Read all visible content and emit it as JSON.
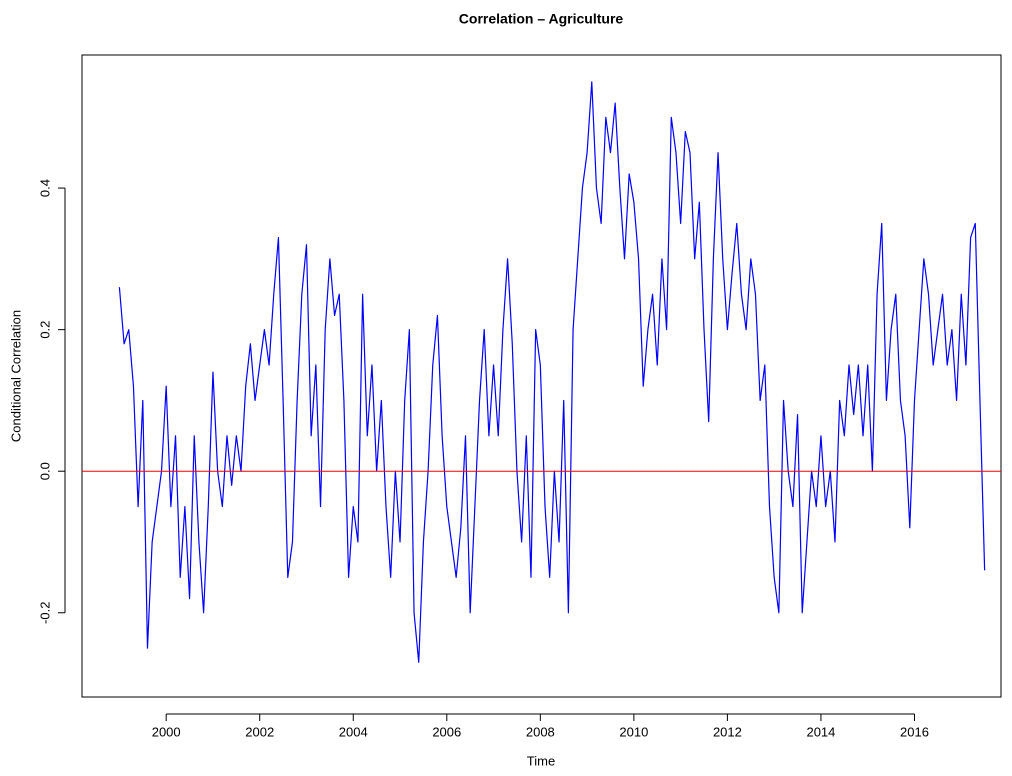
{
  "chart_data": {
    "type": "line",
    "title": "Correlation – Agriculture",
    "xlabel": "Time",
    "ylabel": "Conditional Correlation",
    "color": "#0000ff",
    "hline": {
      "value": 0,
      "color": "#ff0000"
    },
    "xlim": [
      1998.2,
      2017.85
    ],
    "ylim": [
      -0.319,
      0.588
    ],
    "xticks": [
      2000,
      2002,
      2004,
      2006,
      2008,
      2010,
      2012,
      2014,
      2016
    ],
    "yticks": [
      -0.2,
      {
        "value": 0,
        "label": "0.0"
      },
      0.2,
      0.4
    ],
    "x": [
      1999.0,
      1999.1,
      1999.2,
      1999.3,
      1999.4,
      1999.5,
      1999.6,
      1999.7,
      1999.8,
      1999.9,
      2000.0,
      2000.1,
      2000.2,
      2000.3,
      2000.4,
      2000.5,
      2000.6,
      2000.7,
      2000.8,
      2000.9,
      2001.0,
      2001.1,
      2001.2,
      2001.3,
      2001.4,
      2001.5,
      2001.6,
      2001.7,
      2001.8,
      2001.9,
      2002.0,
      2002.1,
      2002.2,
      2002.3,
      2002.4,
      2002.5,
      2002.6,
      2002.7,
      2002.8,
      2002.9,
      2003.0,
      2003.1,
      2003.2,
      2003.3,
      2003.4,
      2003.5,
      2003.6,
      2003.7,
      2003.8,
      2003.9,
      2004.0,
      2004.1,
      2004.2,
      2004.3,
      2004.4,
      2004.5,
      2004.6,
      2004.7,
      2004.8,
      2004.9,
      2005.0,
      2005.1,
      2005.2,
      2005.3,
      2005.4,
      2005.5,
      2005.6,
      2005.7,
      2005.8,
      2005.9,
      2006.0,
      2006.1,
      2006.2,
      2006.3,
      2006.4,
      2006.5,
      2006.6,
      2006.7,
      2006.8,
      2006.9,
      2007.0,
      2007.1,
      2007.2,
      2007.3,
      2007.4,
      2007.5,
      2007.6,
      2007.7,
      2007.8,
      2007.9,
      2008.0,
      2008.1,
      2008.2,
      2008.3,
      2008.4,
      2008.5,
      2008.6,
      2008.7,
      2008.8,
      2008.9,
      2009.0,
      2009.1,
      2009.2,
      2009.3,
      2009.4,
      2009.5,
      2009.6,
      2009.7,
      2009.8,
      2009.9,
      2010.0,
      2010.1,
      2010.2,
      2010.3,
      2010.4,
      2010.5,
      2010.6,
      2010.7,
      2010.8,
      2010.9,
      2011.0,
      2011.1,
      2011.2,
      2011.3,
      2011.4,
      2011.5,
      2011.6,
      2011.7,
      2011.8,
      2011.9,
      2012.0,
      2012.1,
      2012.2,
      2012.3,
      2012.4,
      2012.5,
      2012.6,
      2012.7,
      2012.8,
      2012.9,
      2013.0,
      2013.1,
      2013.2,
      2013.3,
      2013.4,
      2013.5,
      2013.6,
      2013.7,
      2013.8,
      2013.9,
      2014.0,
      2014.1,
      2014.2,
      2014.3,
      2014.4,
      2014.5,
      2014.6,
      2014.7,
      2014.8,
      2014.9,
      2015.0,
      2015.1,
      2015.2,
      2015.3,
      2015.4,
      2015.5,
      2015.6,
      2015.7,
      2015.8,
      2015.9,
      2016.0,
      2016.1,
      2016.2,
      2016.3,
      2016.4,
      2016.5,
      2016.6,
      2016.7,
      2016.8,
      2016.9,
      2017.0,
      2017.1,
      2017.2,
      2017.3,
      2017.4,
      2017.5
    ],
    "values": [
      0.26,
      0.18,
      0.2,
      0.12,
      -0.05,
      0.1,
      -0.25,
      -0.1,
      -0.05,
      0.0,
      0.12,
      -0.05,
      0.05,
      -0.15,
      -0.05,
      -0.18,
      0.05,
      -0.1,
      -0.2,
      -0.05,
      0.14,
      0.0,
      -0.05,
      0.05,
      -0.02,
      0.05,
      0.0,
      0.12,
      0.18,
      0.1,
      0.15,
      0.2,
      0.15,
      0.25,
      0.33,
      0.1,
      -0.15,
      -0.1,
      0.1,
      0.25,
      0.32,
      0.05,
      0.15,
      -0.05,
      0.2,
      0.3,
      0.22,
      0.25,
      0.1,
      -0.15,
      -0.05,
      -0.1,
      0.25,
      0.05,
      0.15,
      0.0,
      0.1,
      -0.05,
      -0.15,
      0.0,
      -0.1,
      0.1,
      0.2,
      -0.2,
      -0.27,
      -0.1,
      0.0,
      0.15,
      0.22,
      0.05,
      -0.05,
      -0.1,
      -0.15,
      -0.08,
      0.05,
      -0.2,
      -0.05,
      0.1,
      0.2,
      0.05,
      0.15,
      0.05,
      0.2,
      0.3,
      0.18,
      0.0,
      -0.1,
      0.05,
      -0.15,
      0.2,
      0.15,
      -0.05,
      -0.15,
      0.0,
      -0.1,
      0.1,
      -0.2,
      0.2,
      0.3,
      0.4,
      0.45,
      0.55,
      0.4,
      0.35,
      0.5,
      0.45,
      0.52,
      0.4,
      0.3,
      0.42,
      0.38,
      0.3,
      0.12,
      0.2,
      0.25,
      0.15,
      0.3,
      0.2,
      0.5,
      0.45,
      0.35,
      0.48,
      0.45,
      0.3,
      0.38,
      0.2,
      0.07,
      0.3,
      0.45,
      0.3,
      0.2,
      0.28,
      0.35,
      0.25,
      0.2,
      0.3,
      0.25,
      0.1,
      0.15,
      -0.05,
      -0.15,
      -0.2,
      0.1,
      0.0,
      -0.05,
      0.08,
      -0.2,
      -0.1,
      0.0,
      -0.05,
      0.05,
      -0.05,
      0.0,
      -0.1,
      0.1,
      0.05,
      0.15,
      0.08,
      0.15,
      0.05,
      0.15,
      0.0,
      0.25,
      0.35,
      0.1,
      0.2,
      0.25,
      0.1,
      0.05,
      -0.08,
      0.1,
      0.2,
      0.3,
      0.25,
      0.15,
      0.2,
      0.25,
      0.15,
      0.2,
      0.1,
      0.25,
      0.15,
      0.33,
      0.35,
      0.1,
      -0.14
    ]
  }
}
